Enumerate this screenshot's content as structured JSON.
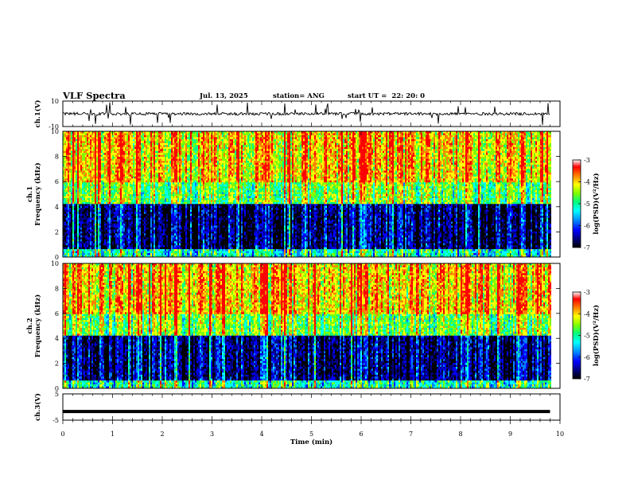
{
  "header": {
    "title": "VLF Spectra",
    "date": "Jul. 13, 2025",
    "station": "station= ANG",
    "start": "start UT =  22: 20: 0"
  },
  "colors": {
    "spectrogram_scale": [
      "#000000",
      "#00007f",
      "#0000ff",
      "#0080ff",
      "#00ffff",
      "#00ff80",
      "#80ff00",
      "#ffff00",
      "#ff8000",
      "#ff0000",
      "#ffffff"
    ],
    "trace": "#000000"
  },
  "chart_data": [
    {
      "type": "line",
      "panel": "ch1-waveform",
      "ylabel": "ch.1(V)",
      "ylim": [
        -10,
        10
      ],
      "y_ticks": [
        "10",
        "-10"
      ],
      "xlim": [
        0,
        10
      ]
    },
    {
      "type": "heatmap",
      "panel": "ch1-spectrogram",
      "ylabel_channel": "ch.1",
      "ylabel": "Frequency (kHz)",
      "ylim": [
        0,
        10
      ],
      "y_ticks": [
        "0",
        "2",
        "4",
        "6",
        "8",
        "10"
      ],
      "xlim": [
        0,
        10
      ],
      "colorbar": {
        "label": "log(PSD)(V²/Hz)",
        "range": [
          -7,
          -3
        ],
        "ticks": [
          "-3",
          "-4",
          "-5",
          "-6",
          "-7"
        ]
      }
    },
    {
      "type": "heatmap",
      "panel": "ch2-spectrogram",
      "ylabel_channel": "ch.2",
      "ylabel": "Frequency (kHz)",
      "ylim": [
        0,
        10
      ],
      "y_ticks": [
        "0",
        "2",
        "4",
        "6",
        "8",
        "10"
      ],
      "xlim": [
        0,
        10
      ],
      "colorbar": {
        "label": "log(PSD)(V²/Hz)",
        "range": [
          -7,
          -3
        ],
        "ticks": [
          "-3",
          "-4",
          "-5",
          "-6",
          "-7"
        ]
      }
    },
    {
      "type": "line",
      "panel": "ch3-waveform",
      "ylabel": "ch.3(V)",
      "ylim": [
        -5,
        5
      ],
      "y_ticks": [
        "5",
        "-5"
      ],
      "xlim": [
        0,
        10
      ],
      "xlabel": "Time (min)",
      "x_ticks": [
        "0",
        "1",
        "2",
        "3",
        "4",
        "5",
        "6",
        "7",
        "8",
        "9",
        "10"
      ],
      "series": [
        {
          "x": [
            0,
            9.8
          ],
          "y": [
            -1.7,
            -1.7
          ]
        }
      ]
    }
  ]
}
